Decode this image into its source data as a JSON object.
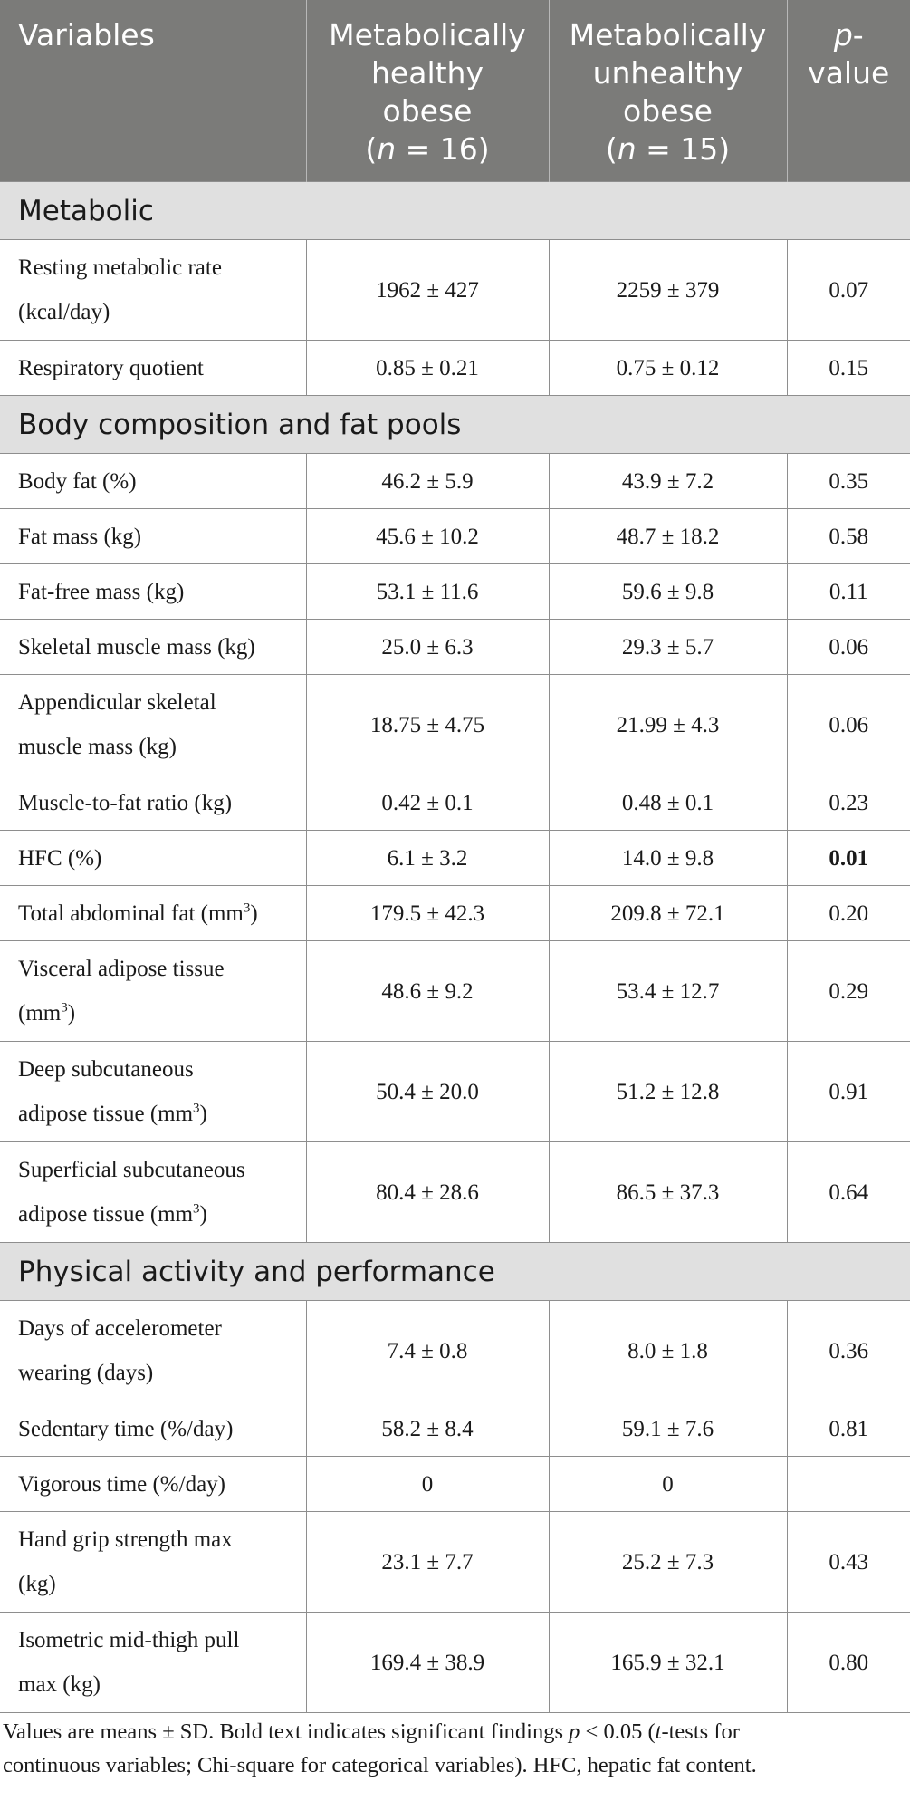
{
  "table": {
    "headers": {
      "variables": "Variables",
      "mho": [
        "Metabolically",
        "healthy",
        "obese",
        "(n = 16)"
      ],
      "muo": [
        "Metabolically",
        "unhealthy",
        "obese",
        "(n = 15)"
      ],
      "pvalue": [
        "p-",
        "value"
      ]
    },
    "sections": [
      {
        "title": "Metabolic",
        "rows": [
          {
            "label": [
              "Resting metabolic rate",
              "(kcal/day)"
            ],
            "mho": "1962 ± 427",
            "muo": "2259 ± 379",
            "p": "0.07",
            "bold": false
          },
          {
            "label": [
              "Respiratory quotient"
            ],
            "mho": "0.85 ± 0.21",
            "muo": "0.75 ± 0.12",
            "p": "0.15",
            "bold": false
          }
        ]
      },
      {
        "title": "Body composition and fat pools",
        "rows": [
          {
            "label": [
              "Body fat (%)"
            ],
            "mho": "46.2 ± 5.9",
            "muo": "43.9 ± 7.2",
            "p": "0.35",
            "bold": false
          },
          {
            "label": [
              "Fat mass (kg)"
            ],
            "mho": "45.6 ± 10.2",
            "muo": "48.7 ± 18.2",
            "p": "0.58",
            "bold": false
          },
          {
            "label": [
              "Fat-free mass (kg)"
            ],
            "mho": "53.1 ± 11.6",
            "muo": "59.6 ± 9.8",
            "p": "0.11",
            "bold": false
          },
          {
            "label": [
              "Skeletal muscle mass (kg)"
            ],
            "mho": "25.0 ± 6.3",
            "muo": "29.3 ± 5.7",
            "p": "0.06",
            "bold": false
          },
          {
            "label": [
              "Appendicular skeletal",
              "muscle mass (kg)"
            ],
            "mho": "18.75 ± 4.75",
            "muo": "21.99 ± 4.3",
            "p": "0.06",
            "bold": false
          },
          {
            "label": [
              "Muscle-to-fat ratio (kg)"
            ],
            "mho": "0.42 ± 0.1",
            "muo": "0.48 ± 0.1",
            "p": "0.23",
            "bold": false
          },
          {
            "label": [
              "HFC (%)"
            ],
            "mho": "6.1 ± 3.2",
            "muo": "14.0 ± 9.8",
            "p": "0.01",
            "bold": true
          },
          {
            "label": [
              "Total abdominal fat (mm³)"
            ],
            "mho": "179.5 ± 42.3",
            "muo": "209.8 ± 72.1",
            "p": "0.20",
            "bold": false
          },
          {
            "label": [
              "Visceral adipose tissue",
              "(mm³)"
            ],
            "mho": "48.6 ± 9.2",
            "muo": "53.4 ± 12.7",
            "p": "0.29",
            "bold": false
          },
          {
            "label": [
              "Deep subcutaneous",
              "adipose tissue (mm³)"
            ],
            "mho": "50.4 ± 20.0",
            "muo": "51.2 ± 12.8",
            "p": "0.91",
            "bold": false
          },
          {
            "label": [
              "Superficial subcutaneous",
              "adipose tissue (mm³)"
            ],
            "mho": "80.4 ± 28.6",
            "muo": "86.5 ± 37.3",
            "p": "0.64",
            "bold": false
          }
        ]
      },
      {
        "title": "Physical activity and performance",
        "rows": [
          {
            "label": [
              "Days of accelerometer",
              "wearing (days)"
            ],
            "mho": "7.4 ± 0.8",
            "muo": "8.0 ± 1.8",
            "p": "0.36",
            "bold": false
          },
          {
            "label": [
              "Sedentary time (%/day)"
            ],
            "mho": "58.2 ± 8.4",
            "muo": "59.1 ± 7.6",
            "p": "0.81",
            "bold": false
          },
          {
            "label": [
              "Vigorous time (%/day)"
            ],
            "mho": "0",
            "muo": "0",
            "p": "",
            "bold": false
          },
          {
            "label": [
              "Hand grip strength max",
              "(kg)"
            ],
            "mho": "23.1 ± 7.7",
            "muo": "25.2 ± 7.3",
            "p": "0.43",
            "bold": false
          },
          {
            "label": [
              "Isometric mid-thigh pull",
              "max (kg)"
            ],
            "mho": "169.4 ± 38.9",
            "muo": "165.9 ± 32.1",
            "p": "0.80",
            "bold": false
          }
        ]
      }
    ]
  },
  "footnote": {
    "line1": "Values are means ± SD. Bold text indicates significant findings p < 0.05 (t-tests for",
    "line2": "continuous variables; Chi-square for categorical variables). HFC, hepatic fat content."
  }
}
